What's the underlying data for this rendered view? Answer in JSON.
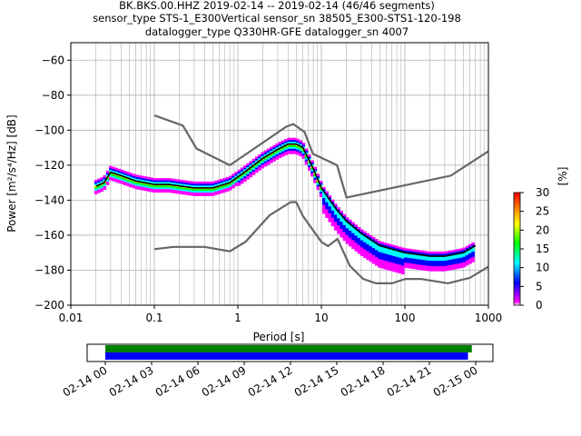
{
  "title_lines": [
    "BK.BKS.00.HHZ   2019-02-14 -- 2019-02-14  (46/46 segments)",
    "sensor_type STS-1_E300Vertical sensor_sn 38505_E300-STS1-120-198",
    "datalogger_type Q330HR-GFE datalogger_sn 4007"
  ],
  "chart_data": [
    {
      "type": "heatmap",
      "subtype": "probabilistic power spectral density",
      "xlabel": "Period [s]",
      "ylabel": "Power [m²/s⁴/Hz] [dB]",
      "xscale": "log",
      "xlim": [
        0.01,
        1000
      ],
      "ylim": [
        -200,
        -50
      ],
      "grid": true,
      "x_ticks": [
        {
          "value": 0.01,
          "label": "0.01"
        },
        {
          "value": 0.1,
          "label": "0.1"
        },
        {
          "value": 1,
          "label": "1"
        },
        {
          "value": 10,
          "label": "10"
        },
        {
          "value": 100,
          "label": "100"
        },
        {
          "value": 1000,
          "label": "1000"
        }
      ],
      "y_ticks": [
        {
          "value": -60,
          "label": "−60"
        },
        {
          "value": -80,
          "label": "−80"
        },
        {
          "value": -100,
          "label": "−100"
        },
        {
          "value": -120,
          "label": "−120"
        },
        {
          "value": -140,
          "label": "−140"
        },
        {
          "value": -160,
          "label": "−160"
        },
        {
          "value": -180,
          "label": "−180"
        },
        {
          "value": -200,
          "label": "−200"
        }
      ],
      "colorbar": {
        "label": "[%]",
        "range": [
          0,
          30
        ],
        "ticks": [
          "0",
          "5",
          "10",
          "15",
          "20",
          "25",
          "30"
        ],
        "colormap": [
          "#ffffff",
          "#ff00ff",
          "#0000ff",
          "#00ffff",
          "#00ff00",
          "#ffff00",
          "#ff8000",
          "#ff0000"
        ]
      },
      "series": [
        {
          "role": "high noise model",
          "color": "#666666",
          "x": [
            0.1,
            0.22,
            0.32,
            0.8,
            3.8,
            4.6,
            6.3,
            7.9,
            15.4,
            20,
            354.8,
            1000
          ],
          "y": [
            -91.5,
            -97.4,
            -110.5,
            -120,
            -98,
            -96.5,
            -101,
            -113.5,
            -120,
            -138.5,
            -126,
            -112
          ]
        },
        {
          "role": "low noise model",
          "color": "#666666",
          "x": [
            0.1,
            0.17,
            0.4,
            0.8,
            1.24,
            2.4,
            4.3,
            5,
            6,
            10,
            12,
            15.6,
            21.9,
            31.6,
            45,
            70,
            101,
            154,
            328,
            600,
            1000
          ],
          "y": [
            -168,
            -166.7,
            -166.7,
            -169.2,
            -163.7,
            -148.6,
            -141.1,
            -141.1,
            -149,
            -163.8,
            -166.2,
            -162.1,
            -177.5,
            -185,
            -187.5,
            -187.5,
            -185,
            -185,
            -187.5,
            -184.4,
            -178
          ]
        },
        {
          "role": "mode",
          "color": "#000000",
          "x": [
            0.02,
            0.025,
            0.03,
            0.04,
            0.06,
            0.1,
            0.15,
            0.3,
            0.5,
            0.8,
            1.2,
            2,
            3,
            4,
            5,
            6,
            8,
            10,
            15,
            20,
            30,
            50,
            100,
            200,
            300,
            500,
            700
          ],
          "y": [
            -132,
            -130,
            -124,
            -126,
            -129,
            -131,
            -131,
            -133,
            -133,
            -130,
            -124,
            -116,
            -111,
            -108,
            -108,
            -110,
            -122,
            -133,
            -145,
            -152,
            -159,
            -166,
            -170,
            -172,
            -172,
            -170,
            -166
          ]
        }
      ],
      "time_coverage": {
        "tick_labels": [
          "02-14 00",
          "02-14 03",
          "02-14 06",
          "02-14 09",
          "02-14 12",
          "02-14 15",
          "02-14 18",
          "02-14 21",
          "02-15 00"
        ],
        "start_hour": 0,
        "end_hour": 24,
        "bars": [
          {
            "color": "#008000",
            "start": 0,
            "end": 23.75
          },
          {
            "color": "#0000ff",
            "start": 0,
            "end": 23.5
          }
        ]
      }
    }
  ]
}
